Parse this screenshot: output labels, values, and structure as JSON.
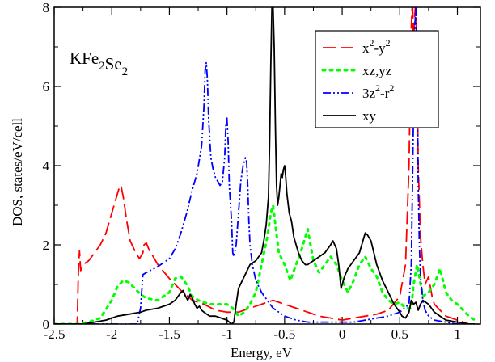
{
  "chart_data": {
    "type": "line",
    "annotation": {
      "base": [
        "KFe",
        "Se"
      ],
      "subscripts": [
        "2",
        "2"
      ]
    },
    "xlabel": "Energy, eV",
    "ylabel": "DOS, states/eV/cell",
    "xlim": [
      -2.5,
      1.2
    ],
    "ylim": [
      0,
      8
    ],
    "x_ticks": [
      -2.5,
      -2,
      -1.5,
      -1,
      -0.5,
      0,
      0.5,
      1
    ],
    "x_tick_labels": [
      "-2.5",
      "-2",
      "-1.5",
      "-1",
      "-0.5",
      "0",
      "0.5",
      "1"
    ],
    "y_ticks": [
      0,
      2,
      4,
      6,
      8
    ],
    "y_tick_labels": [
      "0",
      "2",
      "4",
      "6",
      "8"
    ],
    "legend_position": "top-right",
    "series": [
      {
        "name": "x2-y2",
        "legend": {
          "parts": [
            "x",
            "2",
            "-y",
            "2"
          ]
        },
        "color": "#ff0000",
        "style": "dashed",
        "x": [
          -2.5,
          -2.3,
          -2.29,
          -2.28,
          -2.27,
          -2.25,
          -2.2,
          -2.15,
          -2.1,
          -2.05,
          -2.0,
          -1.97,
          -1.94,
          -1.92,
          -1.9,
          -1.87,
          -1.84,
          -1.8,
          -1.76,
          -1.73,
          -1.72,
          -1.7,
          -1.68,
          -1.64,
          -1.6,
          -1.5,
          -1.4,
          -1.3,
          -1.2,
          -1.1,
          -1.0,
          -0.9,
          -0.8,
          -0.7,
          -0.6,
          -0.5,
          -0.4,
          -0.3,
          -0.2,
          -0.1,
          0.0,
          0.1,
          0.2,
          0.3,
          0.4,
          0.5,
          0.55,
          0.58,
          0.6,
          0.61,
          0.62,
          0.63,
          0.64,
          0.65,
          0.66,
          0.68,
          0.7,
          0.72,
          0.75,
          0.78,
          0.8,
          0.85,
          0.9,
          1.0,
          1.1,
          1.15
        ],
        "values": [
          0.0,
          0.0,
          1.3,
          1.85,
          1.35,
          1.5,
          1.6,
          1.8,
          2.0,
          2.3,
          2.8,
          3.1,
          3.4,
          3.5,
          3.2,
          2.6,
          2.1,
          1.85,
          1.65,
          1.8,
          2.0,
          2.05,
          1.9,
          1.7,
          1.5,
          1.15,
          0.85,
          0.6,
          0.5,
          0.35,
          0.3,
          0.3,
          0.4,
          0.5,
          0.6,
          0.5,
          0.4,
          0.3,
          0.2,
          0.15,
          0.1,
          0.15,
          0.2,
          0.25,
          0.35,
          0.7,
          1.5,
          4.0,
          7.5,
          8.2,
          7.0,
          7.8,
          8.2,
          6.5,
          4.0,
          2.2,
          1.5,
          1.0,
          1.2,
          0.7,
          0.5,
          0.35,
          0.2,
          0.1,
          0.0,
          0.0
        ]
      },
      {
        "name": "xz,yz",
        "legend": {
          "parts": [
            "xz,yz"
          ]
        },
        "color": "#00ff00",
        "style": "dotted",
        "x": [
          -2.5,
          -2.3,
          -2.2,
          -2.1,
          -2.0,
          -1.95,
          -1.9,
          -1.85,
          -1.8,
          -1.75,
          -1.7,
          -1.6,
          -1.5,
          -1.45,
          -1.4,
          -1.35,
          -1.3,
          -1.25,
          -1.2,
          -1.15,
          -1.1,
          -1.05,
          -1.0,
          -0.95,
          -0.9,
          -0.85,
          -0.8,
          -0.75,
          -0.7,
          -0.65,
          -0.62,
          -0.6,
          -0.58,
          -0.55,
          -0.5,
          -0.45,
          -0.4,
          -0.35,
          -0.3,
          -0.25,
          -0.2,
          -0.15,
          -0.1,
          -0.05,
          0.0,
          0.05,
          0.1,
          0.15,
          0.2,
          0.25,
          0.3,
          0.35,
          0.4,
          0.45,
          0.5,
          0.55,
          0.6,
          0.62,
          0.65,
          0.7,
          0.75,
          0.8,
          0.85,
          0.9,
          0.95,
          1.0,
          1.05,
          1.1,
          1.15
        ],
        "values": [
          0.0,
          0.0,
          0.05,
          0.15,
          0.6,
          0.95,
          1.1,
          1.05,
          0.9,
          0.75,
          0.65,
          0.6,
          0.8,
          1.15,
          1.2,
          1.0,
          0.7,
          0.6,
          0.55,
          0.5,
          0.5,
          0.5,
          0.5,
          0.4,
          0.2,
          0.3,
          0.5,
          0.8,
          1.5,
          2.2,
          2.8,
          3.0,
          2.5,
          1.8,
          1.5,
          1.1,
          1.5,
          1.9,
          2.4,
          1.6,
          1.3,
          1.5,
          1.7,
          1.5,
          1.1,
          0.8,
          1.1,
          1.5,
          1.7,
          1.4,
          1.2,
          0.8,
          0.6,
          0.5,
          0.55,
          0.4,
          0.4,
          1.0,
          1.5,
          0.7,
          0.8,
          1.0,
          1.4,
          0.8,
          0.6,
          0.5,
          0.35,
          0.2,
          0.1
        ]
      },
      {
        "name": "3z2-r2",
        "legend": {
          "parts": [
            "3z",
            "2",
            "-r",
            "2"
          ]
        },
        "color": "#0000ff",
        "style": "dash-dot-dot",
        "x": [
          -2.5,
          -1.78,
          -1.75,
          -1.73,
          -1.7,
          -1.6,
          -1.5,
          -1.45,
          -1.4,
          -1.35,
          -1.3,
          -1.26,
          -1.22,
          -1.2,
          -1.19,
          -1.18,
          -1.17,
          -1.16,
          -1.14,
          -1.12,
          -1.1,
          -1.08,
          -1.06,
          -1.04,
          -1.02,
          -1.01,
          -1.0,
          -0.99,
          -0.98,
          -0.96,
          -0.95,
          -0.94,
          -0.92,
          -0.9,
          -0.88,
          -0.86,
          -0.84,
          -0.83,
          -0.82,
          -0.81,
          -0.8,
          -0.78,
          -0.75,
          -0.7,
          -0.6,
          -0.5,
          -0.4,
          -0.3,
          -0.2,
          -0.1,
          0.0,
          0.1,
          0.2,
          0.3,
          0.4,
          0.5,
          0.58,
          0.6,
          0.61,
          0.62,
          0.63,
          0.64,
          0.65,
          0.66,
          0.67,
          0.68,
          0.7,
          0.72,
          0.75,
          0.8,
          0.9,
          1.0,
          1.15
        ],
        "values": [
          0.0,
          0.0,
          0.4,
          1.25,
          1.3,
          1.45,
          1.65,
          1.9,
          2.3,
          2.8,
          3.4,
          3.8,
          4.5,
          5.5,
          6.4,
          6.6,
          6.2,
          5.2,
          4.2,
          3.9,
          3.7,
          3.6,
          3.5,
          3.6,
          4.2,
          5.0,
          5.2,
          4.6,
          3.5,
          2.6,
          1.8,
          1.7,
          2.0,
          2.8,
          3.6,
          4.0,
          4.2,
          4.1,
          3.5,
          2.6,
          2.0,
          1.5,
          1.1,
          0.8,
          0.4,
          0.2,
          0.1,
          0.05,
          0.05,
          0.05,
          0.05,
          0.05,
          0.1,
          0.15,
          0.2,
          0.3,
          0.5,
          1.5,
          3.5,
          5.5,
          7.5,
          8.0,
          6.5,
          3.5,
          2.0,
          1.2,
          0.6,
          0.35,
          0.2,
          0.1,
          0.05,
          0.0,
          0.0
        ]
      },
      {
        "name": "xy",
        "legend": {
          "parts": [
            "xy"
          ]
        },
        "color": "#000000",
        "style": "solid",
        "x": [
          -2.5,
          -2.25,
          -2.15,
          -2.05,
          -1.95,
          -1.85,
          -1.75,
          -1.7,
          -1.6,
          -1.5,
          -1.45,
          -1.4,
          -1.38,
          -1.36,
          -1.34,
          -1.32,
          -1.3,
          -1.28,
          -1.26,
          -1.24,
          -1.22,
          -1.2,
          -1.15,
          -1.1,
          -1.05,
          -1.0,
          -0.96,
          -0.94,
          -0.92,
          -0.9,
          -0.85,
          -0.8,
          -0.75,
          -0.7,
          -0.68,
          -0.66,
          -0.64,
          -0.63,
          -0.62,
          -0.61,
          -0.6,
          -0.59,
          -0.58,
          -0.57,
          -0.56,
          -0.55,
          -0.54,
          -0.53,
          -0.52,
          -0.51,
          -0.5,
          -0.49,
          -0.48,
          -0.46,
          -0.44,
          -0.42,
          -0.4,
          -0.38,
          -0.35,
          -0.32,
          -0.3,
          -0.25,
          -0.2,
          -0.15,
          -0.1,
          -0.08,
          -0.05,
          -0.03,
          -0.01,
          0.0,
          0.02,
          0.05,
          0.1,
          0.15,
          0.18,
          0.2,
          0.22,
          0.25,
          0.3,
          0.35,
          0.4,
          0.45,
          0.5,
          0.52,
          0.55,
          0.58,
          0.6,
          0.62,
          0.64,
          0.66,
          0.68,
          0.7,
          0.75,
          0.8,
          0.85,
          0.9,
          1.0,
          1.1,
          1.15
        ],
        "values": [
          0.0,
          0.0,
          0.05,
          0.1,
          0.2,
          0.25,
          0.3,
          0.35,
          0.4,
          0.5,
          0.6,
          0.8,
          0.85,
          0.7,
          0.6,
          0.75,
          0.65,
          0.5,
          0.4,
          0.45,
          0.35,
          0.3,
          0.2,
          0.2,
          0.15,
          0.1,
          0.0,
          0.05,
          0.5,
          0.9,
          1.2,
          1.5,
          1.6,
          1.8,
          2.1,
          2.5,
          3.2,
          4.5,
          6.5,
          8.0,
          8.0,
          7.0,
          5.0,
          3.5,
          3.0,
          3.2,
          3.5,
          3.8,
          3.7,
          3.9,
          4.0,
          3.7,
          3.3,
          2.8,
          2.6,
          2.2,
          2.0,
          1.8,
          1.6,
          1.5,
          1.5,
          1.6,
          1.7,
          1.8,
          2.0,
          2.1,
          1.9,
          1.5,
          0.9,
          1.0,
          1.2,
          1.4,
          1.6,
          1.8,
          2.1,
          2.3,
          2.25,
          2.1,
          1.5,
          1.1,
          0.8,
          0.5,
          0.3,
          0.2,
          0.15,
          0.3,
          0.6,
          0.5,
          0.55,
          0.35,
          0.5,
          0.6,
          0.5,
          0.3,
          0.2,
          0.1,
          0.05,
          0.0,
          0.0
        ]
      }
    ]
  }
}
